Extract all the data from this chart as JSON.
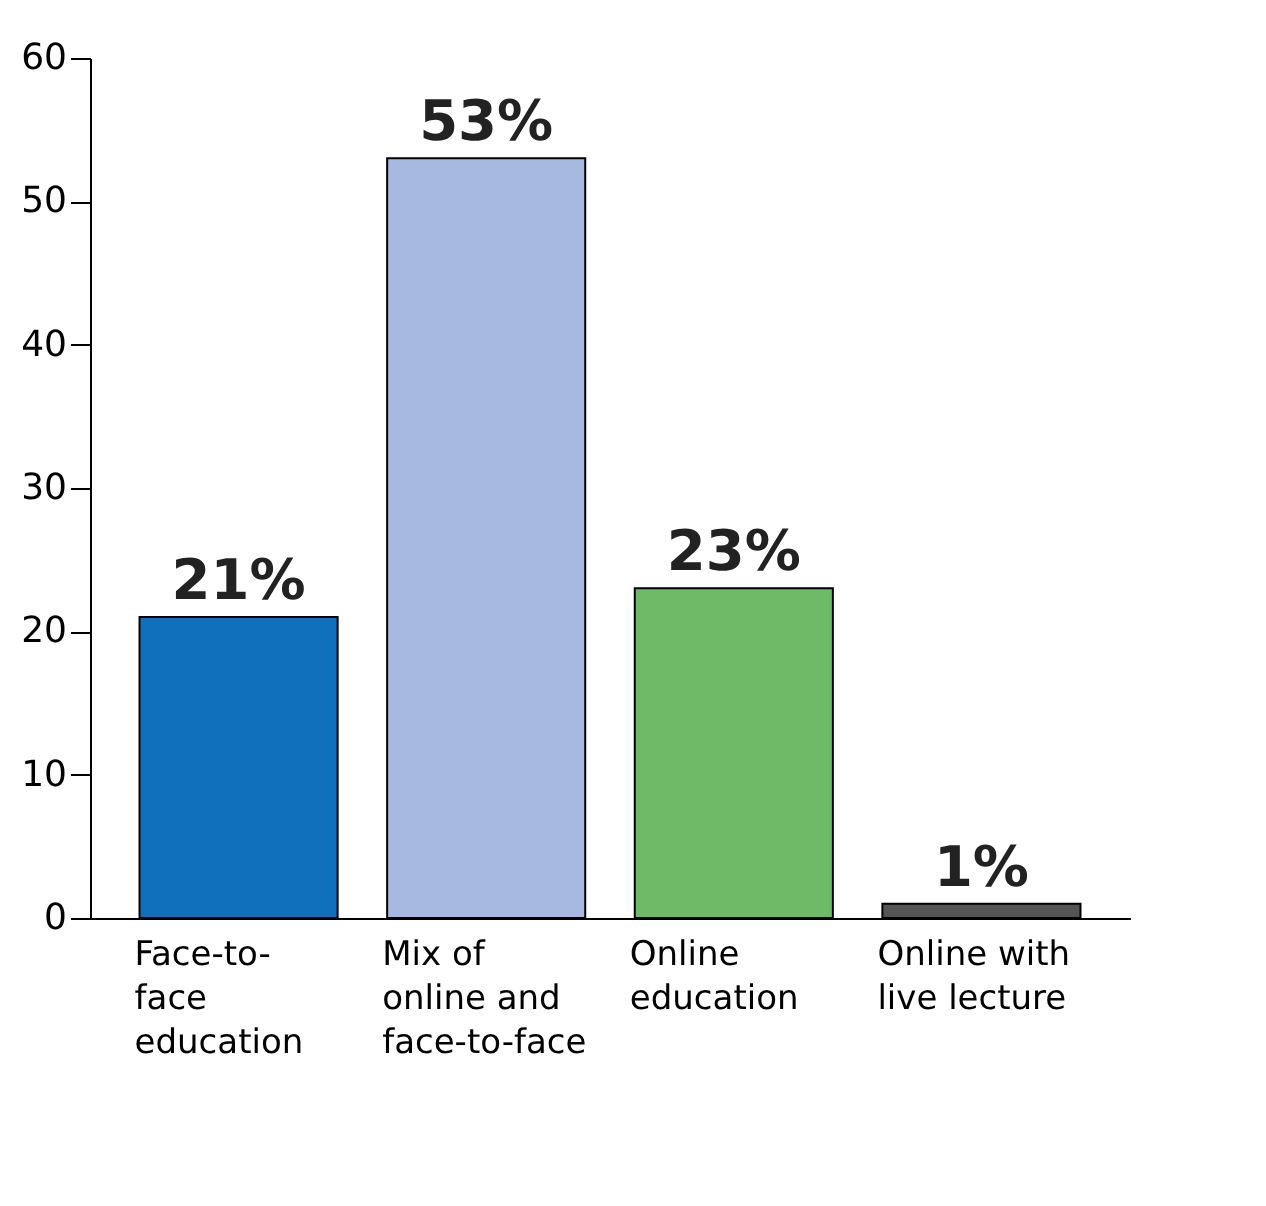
{
  "chart_data": {
    "type": "bar",
    "categories": [
      "Face-to-\nface\neducation",
      "Mix of\nonline and\nface-to-face",
      "Online\neducation",
      "Online with\nlive lecture"
    ],
    "values": [
      21,
      53,
      23,
      1
    ],
    "colors": [
      "#1170bb",
      "#a7b9e0",
      "#6dbb67",
      "#555555"
    ],
    "value_labels": [
      "21%",
      "53%",
      "23%",
      "1%"
    ],
    "ylim": [
      0,
      60
    ],
    "yticks": [
      0,
      10,
      20,
      30,
      40,
      50,
      60
    ],
    "grid": false
  }
}
